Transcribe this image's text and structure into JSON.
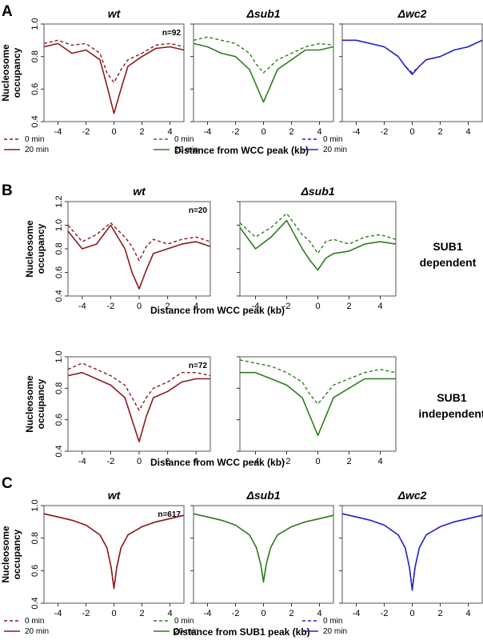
{
  "figure": {
    "panel_labels": [
      "A",
      "B",
      "C"
    ],
    "side_labels": [
      {
        "line1": "SUB1",
        "line2": "dependent"
      },
      {
        "line1": "SUB1",
        "line2": "independent"
      }
    ]
  },
  "chart_data": [
    {
      "id": "A-wt",
      "type": "line",
      "title": "wt",
      "title_prefix": "",
      "n_label": "n=92",
      "xlabel": "Distance from WCC peak (kb)",
      "ylabel": "Nucleosome occupancy",
      "xlim": [
        -5,
        5
      ],
      "ylim": [
        0.4,
        1.0
      ],
      "xticks": [
        -4,
        -2,
        0,
        2,
        4
      ],
      "yticks": [
        0.4,
        0.6,
        0.8,
        1.0
      ],
      "ytick_labels": [
        "0.4",
        "0.6",
        "0.8",
        "1.0"
      ],
      "color": "#8b1a1a",
      "legend": "bottom-left",
      "series": [
        {
          "name": "0 min",
          "dash": true,
          "x": [
            -5,
            -4,
            -3,
            -2,
            -1,
            -0.5,
            0,
            0.5,
            1,
            2,
            3,
            4,
            5
          ],
          "values": [
            0.88,
            0.9,
            0.87,
            0.88,
            0.82,
            0.7,
            0.64,
            0.72,
            0.78,
            0.82,
            0.87,
            0.88,
            0.86
          ]
        },
        {
          "name": "20 min",
          "dash": false,
          "x": [
            -5,
            -4,
            -3,
            -2,
            -1,
            -0.5,
            0,
            0.5,
            1,
            2,
            3,
            4,
            5
          ],
          "values": [
            0.86,
            0.88,
            0.82,
            0.84,
            0.78,
            0.62,
            0.45,
            0.6,
            0.74,
            0.8,
            0.85,
            0.86,
            0.84
          ]
        }
      ]
    },
    {
      "id": "A-sub1",
      "type": "line",
      "title": "sub1",
      "title_prefix": "Δ",
      "n_label": "",
      "xlabel": "Distance from WCC peak (kb)",
      "ylabel": "",
      "xlim": [
        -5,
        5
      ],
      "ylim": [
        0.4,
        1.0
      ],
      "xticks": [
        -4,
        -2,
        0,
        2,
        4
      ],
      "yticks": [
        0.4,
        0.6,
        0.8,
        1.0
      ],
      "ytick_labels": [
        "",
        "",
        "",
        ""
      ],
      "color": "#2e7d1e",
      "legend": "bottom-left",
      "series": [
        {
          "name": "0 min",
          "dash": true,
          "x": [
            -5,
            -4,
            -3,
            -2,
            -1,
            -0.5,
            0,
            0.5,
            1,
            2,
            3,
            4,
            5
          ],
          "values": [
            0.9,
            0.92,
            0.9,
            0.88,
            0.82,
            0.75,
            0.7,
            0.74,
            0.78,
            0.82,
            0.86,
            0.88,
            0.87
          ]
        },
        {
          "name": "20 min",
          "dash": false,
          "x": [
            -5,
            -4,
            -3,
            -2,
            -1,
            -0.5,
            0,
            0.5,
            1,
            2,
            3,
            4,
            5
          ],
          "values": [
            0.88,
            0.86,
            0.82,
            0.8,
            0.72,
            0.62,
            0.52,
            0.62,
            0.72,
            0.78,
            0.84,
            0.84,
            0.86
          ]
        }
      ]
    },
    {
      "id": "A-wc2",
      "type": "line",
      "title": "wc2",
      "title_prefix": "Δ",
      "n_label": "",
      "xlabel": "Distance from WCC peak (kb)",
      "ylabel": "",
      "xlim": [
        -5,
        5
      ],
      "ylim": [
        0.4,
        1.0
      ],
      "xticks": [
        -4,
        -2,
        0,
        2,
        4
      ],
      "yticks": [
        0.4,
        0.6,
        0.8,
        1.0
      ],
      "ytick_labels": [
        "",
        "",
        "",
        ""
      ],
      "color": "#2323c8",
      "legend": "bottom-left",
      "series": [
        {
          "name": "0 min",
          "dash": true,
          "x": [
            -5,
            -4,
            -3,
            -2,
            -1,
            -0.5,
            0,
            0.5,
            1,
            2,
            3,
            4,
            5
          ],
          "values": [
            0.9,
            0.9,
            0.88,
            0.86,
            0.8,
            0.74,
            0.7,
            0.74,
            0.78,
            0.8,
            0.84,
            0.86,
            0.9
          ]
        },
        {
          "name": "20 min",
          "dash": false,
          "x": [
            -5,
            -4,
            -3,
            -2,
            -1,
            -0.5,
            0,
            0.5,
            1,
            2,
            3,
            4,
            5
          ],
          "values": [
            0.9,
            0.9,
            0.88,
            0.86,
            0.8,
            0.74,
            0.69,
            0.74,
            0.78,
            0.8,
            0.84,
            0.86,
            0.9
          ]
        }
      ]
    },
    {
      "id": "B1-wt",
      "type": "line",
      "title": "wt",
      "title_prefix": "",
      "n_label": "n=20",
      "xlabel": "Distance from WCC peak (kb)",
      "ylabel": "Nucleosome occupancy",
      "xlim": [
        -5,
        5
      ],
      "ylim": [
        0.4,
        1.2
      ],
      "xticks": [
        -4,
        -2,
        0,
        2,
        4
      ],
      "yticks": [
        0.4,
        0.6,
        0.8,
        1.0,
        1.2
      ],
      "ytick_labels": [
        "0.4",
        "0.6",
        "0.8",
        "1.0",
        "1.2"
      ],
      "color": "#8b1a1a",
      "legend": "none",
      "series": [
        {
          "name": "0 min",
          "dash": true,
          "x": [
            -5,
            -4,
            -3,
            -2,
            -1,
            -0.5,
            0,
            0.5,
            1,
            2,
            3,
            4,
            5
          ],
          "values": [
            1.0,
            0.86,
            0.92,
            1.02,
            0.9,
            0.82,
            0.7,
            0.82,
            0.88,
            0.84,
            0.88,
            0.9,
            0.86
          ]
        },
        {
          "name": "20 min",
          "dash": false,
          "x": [
            -5,
            -4,
            -3,
            -2,
            -1,
            -0.5,
            0,
            0.5,
            1,
            2,
            3,
            4,
            5
          ],
          "values": [
            0.95,
            0.8,
            0.84,
            1.0,
            0.8,
            0.6,
            0.46,
            0.62,
            0.76,
            0.8,
            0.84,
            0.86,
            0.82
          ]
        }
      ]
    },
    {
      "id": "B1-sub1",
      "type": "line",
      "title": "sub1",
      "title_prefix": "Δ",
      "n_label": "",
      "xlabel": "Distance from WCC peak (kb)",
      "ylabel": "",
      "xlim": [
        -5,
        5
      ],
      "ylim": [
        0.4,
        1.2
      ],
      "xticks": [
        -4,
        -2,
        0,
        2,
        4
      ],
      "yticks": [
        0.4,
        0.6,
        0.8,
        1.0,
        1.2
      ],
      "ytick_labels": [
        "",
        "",
        "",
        "",
        ""
      ],
      "color": "#2e7d1e",
      "legend": "none",
      "series": [
        {
          "name": "0 min",
          "dash": true,
          "x": [
            -5,
            -4,
            -3,
            -2,
            -1,
            -0.5,
            0,
            0.5,
            1,
            2,
            3,
            4,
            5
          ],
          "values": [
            1.02,
            0.9,
            0.98,
            1.1,
            0.92,
            0.86,
            0.76,
            0.86,
            0.88,
            0.84,
            0.9,
            0.92,
            0.88
          ]
        },
        {
          "name": "20 min",
          "dash": false,
          "x": [
            -5,
            -4,
            -3,
            -2,
            -1,
            -0.5,
            0,
            0.5,
            1,
            2,
            3,
            4,
            5
          ],
          "values": [
            0.98,
            0.8,
            0.9,
            1.04,
            0.8,
            0.7,
            0.62,
            0.72,
            0.76,
            0.78,
            0.84,
            0.86,
            0.84
          ]
        }
      ]
    },
    {
      "id": "B2-wt",
      "type": "line",
      "title": "",
      "title_prefix": "",
      "n_label": "n=72",
      "xlabel": "Distance from WCC peak (kb)",
      "ylabel": "Nucleosome occupancy",
      "xlim": [
        -5,
        5
      ],
      "ylim": [
        0.4,
        1.0
      ],
      "xticks": [
        -4,
        -2,
        0,
        2,
        4
      ],
      "yticks": [
        0.4,
        0.6,
        0.8,
        1.0
      ],
      "ytick_labels": [
        "0.4",
        "0.6",
        "0.8",
        "1.0"
      ],
      "color": "#8b1a1a",
      "legend": "none",
      "series": [
        {
          "name": "0 min",
          "dash": true,
          "x": [
            -5,
            -4,
            -3,
            -2,
            -1,
            -0.5,
            0,
            0.5,
            1,
            2,
            3,
            4,
            5
          ],
          "values": [
            0.92,
            0.96,
            0.92,
            0.88,
            0.82,
            0.74,
            0.66,
            0.74,
            0.8,
            0.84,
            0.9,
            0.9,
            0.88
          ]
        },
        {
          "name": "20 min",
          "dash": false,
          "x": [
            -5,
            -4,
            -3,
            -2,
            -1,
            -0.5,
            0,
            0.5,
            1,
            2,
            3,
            4,
            5
          ],
          "values": [
            0.88,
            0.9,
            0.86,
            0.82,
            0.74,
            0.6,
            0.46,
            0.62,
            0.74,
            0.78,
            0.84,
            0.86,
            0.86
          ]
        }
      ]
    },
    {
      "id": "B2-sub1",
      "type": "line",
      "title": "",
      "title_prefix": "",
      "n_label": "",
      "xlabel": "Distance from WCC peak (kb)",
      "ylabel": "",
      "xlim": [
        -5,
        5
      ],
      "ylim": [
        0.4,
        1.0
      ],
      "xticks": [
        -4,
        -2,
        0,
        2,
        4
      ],
      "yticks": [
        0.4,
        0.6,
        0.8,
        1.0
      ],
      "ytick_labels": [
        "",
        "",
        "",
        ""
      ],
      "color": "#2e7d1e",
      "legend": "none",
      "series": [
        {
          "name": "0 min",
          "dash": true,
          "x": [
            -5,
            -4,
            -3,
            -2,
            -1,
            -0.5,
            0,
            0.5,
            1,
            2,
            3,
            4,
            5
          ],
          "values": [
            0.98,
            0.96,
            0.94,
            0.9,
            0.84,
            0.76,
            0.7,
            0.76,
            0.82,
            0.86,
            0.9,
            0.92,
            0.9
          ]
        },
        {
          "name": "20 min",
          "dash": false,
          "x": [
            -5,
            -4,
            -3,
            -2,
            -1,
            -0.5,
            0,
            0.5,
            1,
            2,
            3,
            4,
            5
          ],
          "values": [
            0.9,
            0.9,
            0.86,
            0.82,
            0.74,
            0.62,
            0.5,
            0.62,
            0.74,
            0.8,
            0.86,
            0.86,
            0.86
          ]
        }
      ]
    },
    {
      "id": "C-wt",
      "type": "line",
      "title": "wt",
      "title_prefix": "",
      "n_label": "n=617",
      "xlabel": "Distance from SUB1 peak (kb)",
      "ylabel": "Nucleosome occupancy",
      "xlim": [
        -5,
        5
      ],
      "ylim": [
        0.4,
        1.0
      ],
      "xticks": [
        -4,
        -2,
        0,
        2,
        4
      ],
      "yticks": [
        0.4,
        0.6,
        0.8,
        1.0
      ],
      "ytick_labels": [
        "0.4",
        "0.6",
        "0.8",
        "1.0"
      ],
      "color": "#8b1a1a",
      "legend": "bottom-left",
      "series": [
        {
          "name": "0 min",
          "dash": true,
          "x": [
            -5,
            -4,
            -3,
            -2,
            -1,
            -0.5,
            -0.2,
            0,
            0.2,
            0.5,
            1,
            2,
            3,
            4,
            5
          ],
          "values": [
            0.95,
            0.93,
            0.91,
            0.88,
            0.82,
            0.74,
            0.62,
            0.5,
            0.62,
            0.74,
            0.82,
            0.87,
            0.9,
            0.92,
            0.94
          ]
        },
        {
          "name": "20 min",
          "dash": false,
          "x": [
            -5,
            -4,
            -3,
            -2,
            -1,
            -0.5,
            -0.2,
            0,
            0.2,
            0.5,
            1,
            2,
            3,
            4,
            5
          ],
          "values": [
            0.95,
            0.93,
            0.91,
            0.88,
            0.82,
            0.74,
            0.62,
            0.49,
            0.62,
            0.74,
            0.82,
            0.87,
            0.9,
            0.92,
            0.94
          ]
        }
      ]
    },
    {
      "id": "C-sub1",
      "type": "line",
      "title": "sub1",
      "title_prefix": "Δ",
      "n_label": "",
      "xlabel": "Distance from SUB1 peak (kb)",
      "ylabel": "",
      "xlim": [
        -5,
        5
      ],
      "ylim": [
        0.4,
        1.0
      ],
      "xticks": [
        -4,
        -2,
        0,
        2,
        4
      ],
      "yticks": [
        0.4,
        0.6,
        0.8,
        1.0
      ],
      "ytick_labels": [
        "",
        "",
        "",
        ""
      ],
      "color": "#2e7d1e",
      "legend": "bottom-left",
      "series": [
        {
          "name": "0 min",
          "dash": true,
          "x": [
            -5,
            -4,
            -3,
            -2,
            -1,
            -0.5,
            -0.2,
            0,
            0.2,
            0.5,
            1,
            2,
            3,
            4,
            5
          ],
          "values": [
            0.95,
            0.93,
            0.91,
            0.88,
            0.82,
            0.74,
            0.64,
            0.54,
            0.64,
            0.74,
            0.82,
            0.87,
            0.9,
            0.92,
            0.94
          ]
        },
        {
          "name": "20 min",
          "dash": false,
          "x": [
            -5,
            -4,
            -3,
            -2,
            -1,
            -0.5,
            -0.2,
            0,
            0.2,
            0.5,
            1,
            2,
            3,
            4,
            5
          ],
          "values": [
            0.95,
            0.93,
            0.91,
            0.88,
            0.82,
            0.74,
            0.64,
            0.53,
            0.64,
            0.74,
            0.82,
            0.87,
            0.9,
            0.92,
            0.94
          ]
        }
      ]
    },
    {
      "id": "C-wc2",
      "type": "line",
      "title": "wc2",
      "title_prefix": "Δ",
      "n_label": "",
      "xlabel": "Distance from SUB1 peak (kb)",
      "ylabel": "",
      "xlim": [
        -5,
        5
      ],
      "ylim": [
        0.4,
        1.0
      ],
      "xticks": [
        -4,
        -2,
        0,
        2,
        4
      ],
      "yticks": [
        0.4,
        0.6,
        0.8,
        1.0
      ],
      "ytick_labels": [
        "",
        "",
        "",
        ""
      ],
      "color": "#2323c8",
      "legend": "bottom-left",
      "series": [
        {
          "name": "0 min",
          "dash": true,
          "x": [
            -5,
            -4,
            -3,
            -2,
            -1,
            -0.5,
            -0.2,
            0,
            0.2,
            0.5,
            1,
            2,
            3,
            4,
            5
          ],
          "values": [
            0.95,
            0.93,
            0.91,
            0.88,
            0.82,
            0.74,
            0.62,
            0.49,
            0.62,
            0.74,
            0.82,
            0.87,
            0.9,
            0.92,
            0.94
          ]
        },
        {
          "name": "20 min",
          "dash": false,
          "x": [
            -5,
            -4,
            -3,
            -2,
            -1,
            -0.5,
            -0.2,
            0,
            0.2,
            0.5,
            1,
            2,
            3,
            4,
            5
          ],
          "values": [
            0.95,
            0.93,
            0.91,
            0.88,
            0.82,
            0.74,
            0.62,
            0.48,
            0.62,
            0.74,
            0.82,
            0.87,
            0.9,
            0.92,
            0.94
          ]
        }
      ]
    }
  ]
}
